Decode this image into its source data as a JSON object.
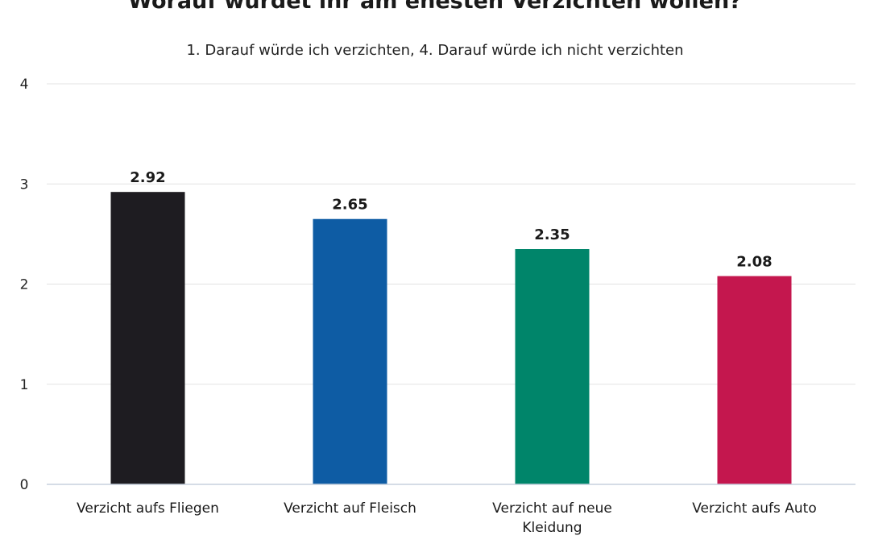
{
  "chart_data": {
    "type": "bar",
    "title": "Worauf würdet ihr am ehesten Verzichten wollen?",
    "subtitle": "1. Darauf würde ich verzichten, 4. Darauf würde ich nicht verzichten",
    "categories": [
      [
        "Verzicht aufs Fliegen"
      ],
      [
        "Verzicht auf Fleisch"
      ],
      [
        "Verzicht auf neue",
        "Kleidung"
      ],
      [
        "Verzicht aufs Auto"
      ]
    ],
    "values": [
      2.92,
      2.65,
      2.35,
      2.08
    ],
    "value_labels": [
      "2.92",
      "2.65",
      "2.35",
      "2.08"
    ],
    "colors": [
      "#1e1c21",
      "#0e5ca4",
      "#00856a",
      "#c4174e"
    ],
    "ylim": [
      0,
      4
    ],
    "yticks": [
      "0",
      "1",
      "2",
      "3",
      "4"
    ],
    "grid": true,
    "legend": "none"
  }
}
